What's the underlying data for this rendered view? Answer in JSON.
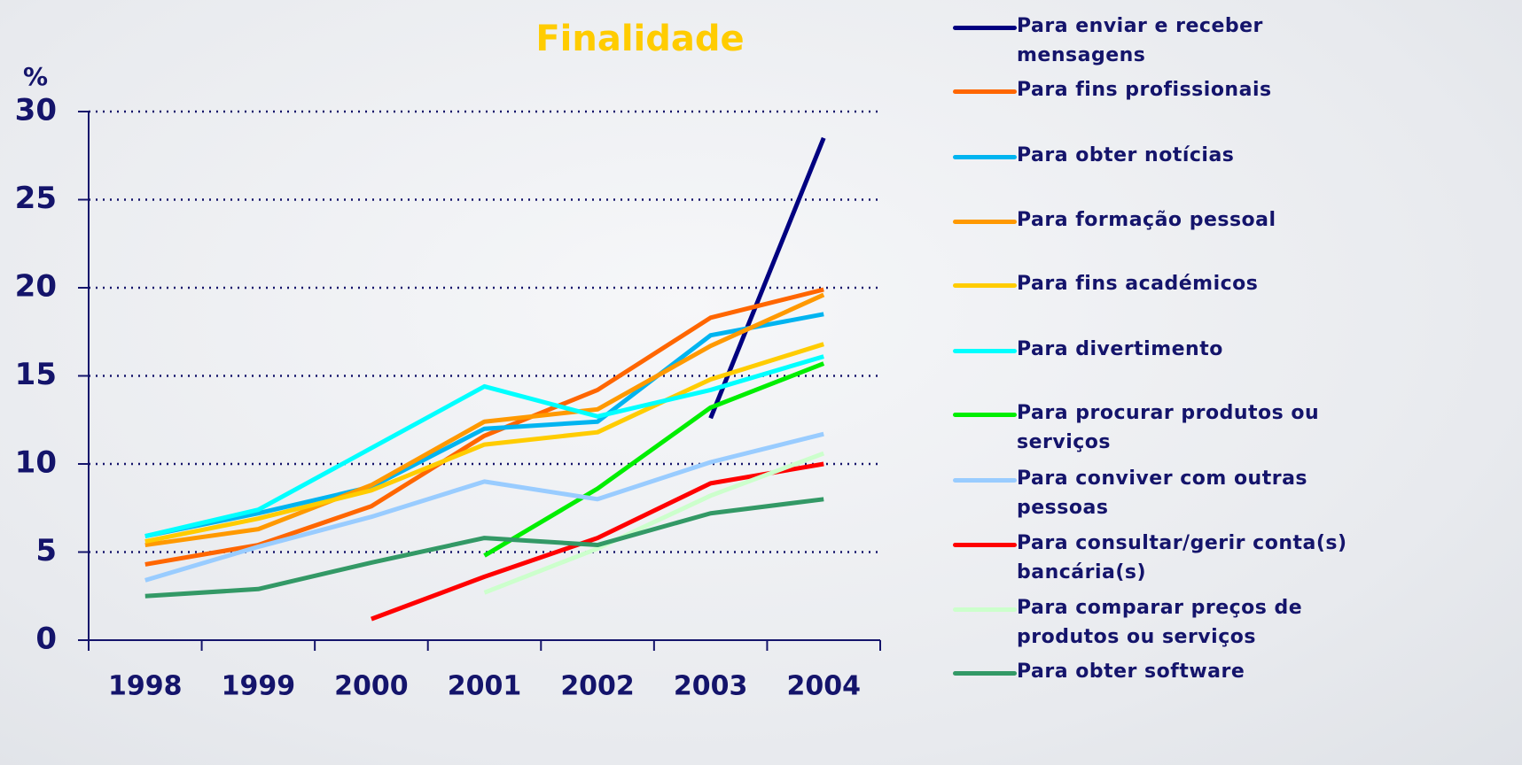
{
  "chart_data": {
    "type": "line",
    "title": "Finalidade",
    "y_label": "%",
    "categories": [
      "1998",
      "1999",
      "2000",
      "2001",
      "2002",
      "2003",
      "2004"
    ],
    "ylim": [
      0,
      30
    ],
    "yticks": [
      0,
      5,
      10,
      15,
      20,
      25,
      30
    ],
    "grid": true,
    "series": [
      {
        "name": "Para enviar e receber mensagens",
        "color": "#000080",
        "values": [
          null,
          null,
          null,
          null,
          null,
          12.6,
          28.5
        ]
      },
      {
        "name": "Para fins profissionais",
        "color": "#ff6600",
        "values": [
          4.3,
          5.4,
          7.6,
          11.6,
          14.2,
          18.3,
          19.9
        ]
      },
      {
        "name": "Para obter notícias",
        "color": "#00b4f0",
        "values": [
          5.9,
          7.2,
          8.7,
          12.0,
          12.4,
          17.3,
          18.5
        ]
      },
      {
        "name": "Para formação pessoal",
        "color": "#ff9900",
        "values": [
          5.4,
          6.3,
          8.8,
          12.4,
          13.1,
          16.7,
          19.6
        ]
      },
      {
        "name": "Para fins académicos",
        "color": "#ffcc00",
        "values": [
          5.6,
          6.9,
          8.5,
          11.1,
          11.8,
          14.8,
          16.8
        ]
      },
      {
        "name": "Para divertimento",
        "color": "#00ffff",
        "values": [
          5.9,
          7.4,
          10.9,
          14.4,
          12.7,
          14.2,
          16.1
        ]
      },
      {
        "name": "Para procurar produtos ou serviços",
        "color": "#00ee00",
        "values": [
          null,
          null,
          null,
          4.8,
          8.6,
          13.2,
          15.7
        ]
      },
      {
        "name": "Para conviver com outras pessoas",
        "color": "#99ccff",
        "values": [
          3.4,
          5.3,
          7.0,
          9.0,
          8.0,
          10.1,
          11.7
        ]
      },
      {
        "name": "Para consultar/gerir conta(s) bancária(s)",
        "color": "#ff0000",
        "values": [
          null,
          null,
          1.2,
          3.6,
          5.8,
          8.9,
          10.0
        ]
      },
      {
        "name": "Para comparar preços de produtos ou serviços",
        "color": "#ccffcc",
        "values": [
          null,
          null,
          null,
          2.7,
          5.2,
          8.2,
          10.6
        ]
      },
      {
        "name": "Para obter software",
        "color": "#339966",
        "values": [
          2.5,
          2.9,
          4.4,
          5.8,
          5.4,
          7.2,
          8.0
        ]
      }
    ]
  }
}
